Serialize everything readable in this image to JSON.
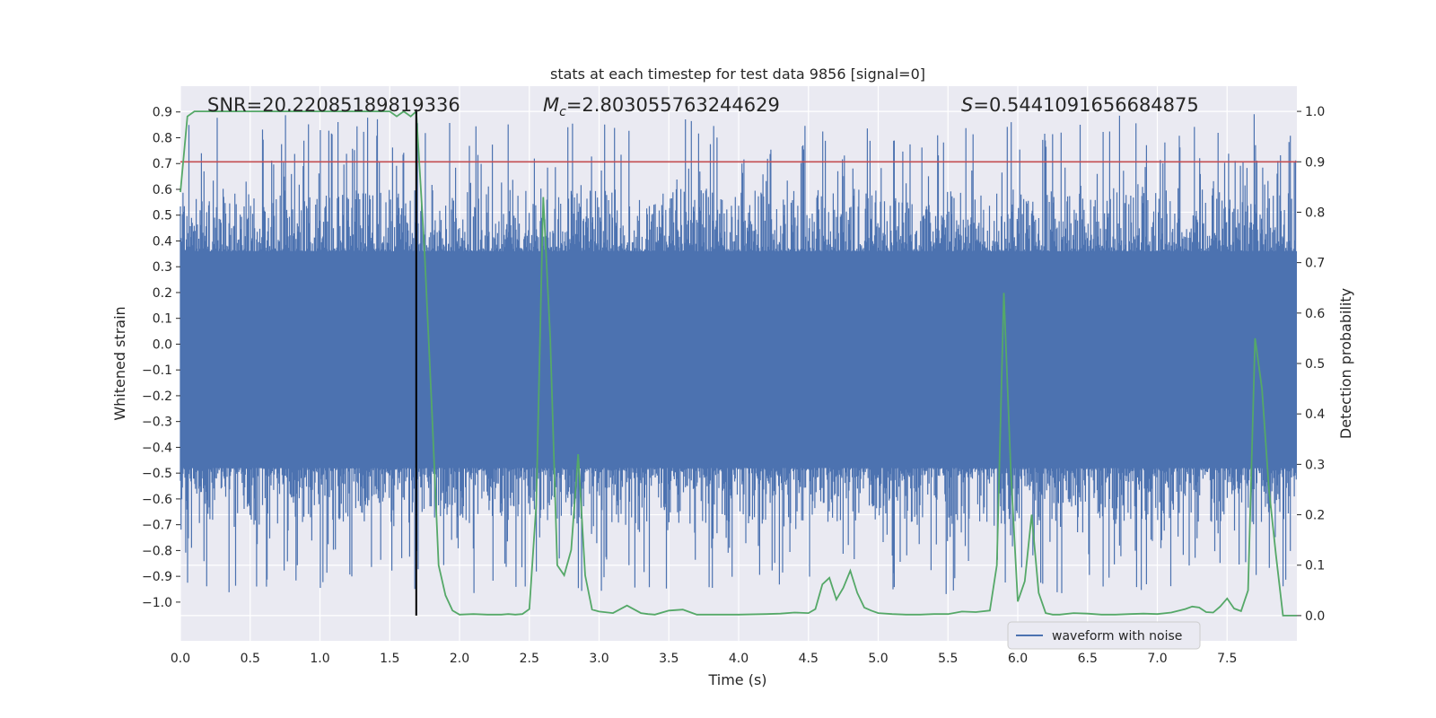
{
  "chart_data": {
    "type": "line",
    "title": "stats at each timestep for test data 9856 [signal=0]",
    "xlabel": "Time (s)",
    "ylabel": "Whitened strain",
    "ylabel_right": "Detection probability",
    "xlim": [
      0.0,
      8.0
    ],
    "ylim": [
      -1.15,
      1.0
    ],
    "ylim_right": [
      -0.05,
      1.05
    ],
    "xticks": [
      "0.0",
      "0.5",
      "1.0",
      "1.5",
      "2.0",
      "2.5",
      "3.0",
      "3.5",
      "4.0",
      "4.5",
      "5.0",
      "5.5",
      "6.0",
      "6.5",
      "7.0",
      "7.5"
    ],
    "yticks": [
      "0.9",
      "0.8",
      "0.7",
      "0.6",
      "0.5",
      "0.4",
      "0.3",
      "0.2",
      "0.1",
      "0.0",
      "−0.1",
      "−0.2",
      "−0.3",
      "−0.4",
      "−0.5",
      "−0.6",
      "−0.7",
      "−0.8",
      "−0.9",
      "−1.0"
    ],
    "yticks_right": [
      "1.0",
      "0.9",
      "0.8",
      "0.7",
      "0.6",
      "0.5",
      "0.4",
      "0.3",
      "0.2",
      "0.1",
      "0.0"
    ],
    "annotations": {
      "snr": "SNR=20.22085189819336",
      "mc_symbol": "M",
      "mc_sub": "c",
      "mc_value": "=2.803055763244629",
      "s_symbol": "S",
      "s_value": "=0.5441091656684875"
    },
    "legend": {
      "label": "waveform with noise",
      "placement": "bottom-right"
    },
    "threshold_right": 0.9,
    "marker_time": 1.69,
    "series": [
      {
        "name": "waveform with noise",
        "color": "#4c72b0",
        "axis": "left",
        "kind": "noise",
        "core_range": [
          -0.48,
          0.36
        ],
        "peak_range": [
          -0.97,
          0.9
        ]
      },
      {
        "name": "detection probability",
        "color": "#55a868",
        "axis": "right",
        "x": [
          0.0,
          0.05,
          0.1,
          0.2,
          0.3,
          0.4,
          0.5,
          0.6,
          0.7,
          0.8,
          0.9,
          1.0,
          1.1,
          1.2,
          1.3,
          1.4,
          1.5,
          1.55,
          1.6,
          1.65,
          1.69,
          1.75,
          1.8,
          1.85,
          1.9,
          1.95,
          2.0,
          2.1,
          2.2,
          2.3,
          2.35,
          2.4,
          2.45,
          2.5,
          2.55,
          2.6,
          2.65,
          2.7,
          2.75,
          2.8,
          2.85,
          2.9,
          2.95,
          3.0,
          3.1,
          3.2,
          3.3,
          3.35,
          3.4,
          3.5,
          3.6,
          3.7,
          3.8,
          4.0,
          4.2,
          4.3,
          4.4,
          4.5,
          4.55,
          4.6,
          4.65,
          4.7,
          4.75,
          4.8,
          4.85,
          4.9,
          4.95,
          5.0,
          5.1,
          5.2,
          5.3,
          5.4,
          5.5,
          5.6,
          5.7,
          5.8,
          5.85,
          5.9,
          5.95,
          6.0,
          6.05,
          6.1,
          6.15,
          6.2,
          6.25,
          6.3,
          6.4,
          6.5,
          6.6,
          6.7,
          6.8,
          6.9,
          7.0,
          7.1,
          7.2,
          7.25,
          7.3,
          7.35,
          7.4,
          7.45,
          7.5,
          7.55,
          7.6,
          7.65,
          7.7,
          7.75,
          7.8,
          7.85,
          7.9,
          7.95,
          8.0
        ],
        "y": [
          0.84,
          0.99,
          1.0,
          1.0,
          1.0,
          1.0,
          1.0,
          1.0,
          1.0,
          1.0,
          1.0,
          1.0,
          1.0,
          1.0,
          1.0,
          1.0,
          1.0,
          0.99,
          1.0,
          0.99,
          1.0,
          0.72,
          0.42,
          0.1,
          0.04,
          0.01,
          0.002,
          0.003,
          0.002,
          0.002,
          0.003,
          0.002,
          0.003,
          0.013,
          0.22,
          0.83,
          0.55,
          0.1,
          0.08,
          0.13,
          0.32,
          0.08,
          0.012,
          0.008,
          0.005,
          0.02,
          0.005,
          0.003,
          0.002,
          0.01,
          0.012,
          0.002,
          0.002,
          0.002,
          0.003,
          0.004,
          0.006,
          0.005,
          0.013,
          0.062,
          0.075,
          0.032,
          0.055,
          0.089,
          0.045,
          0.016,
          0.01,
          0.005,
          0.003,
          0.002,
          0.002,
          0.003,
          0.003,
          0.008,
          0.007,
          0.01,
          0.1,
          0.64,
          0.29,
          0.028,
          0.068,
          0.2,
          0.045,
          0.005,
          0.002,
          0.002,
          0.005,
          0.004,
          0.002,
          0.002,
          0.003,
          0.004,
          0.003,
          0.006,
          0.013,
          0.018,
          0.016,
          0.007,
          0.006,
          0.018,
          0.034,
          0.014,
          0.009,
          0.05,
          0.55,
          0.45,
          0.25,
          0.12,
          0.0,
          0.0,
          0.0
        ]
      }
    ]
  }
}
